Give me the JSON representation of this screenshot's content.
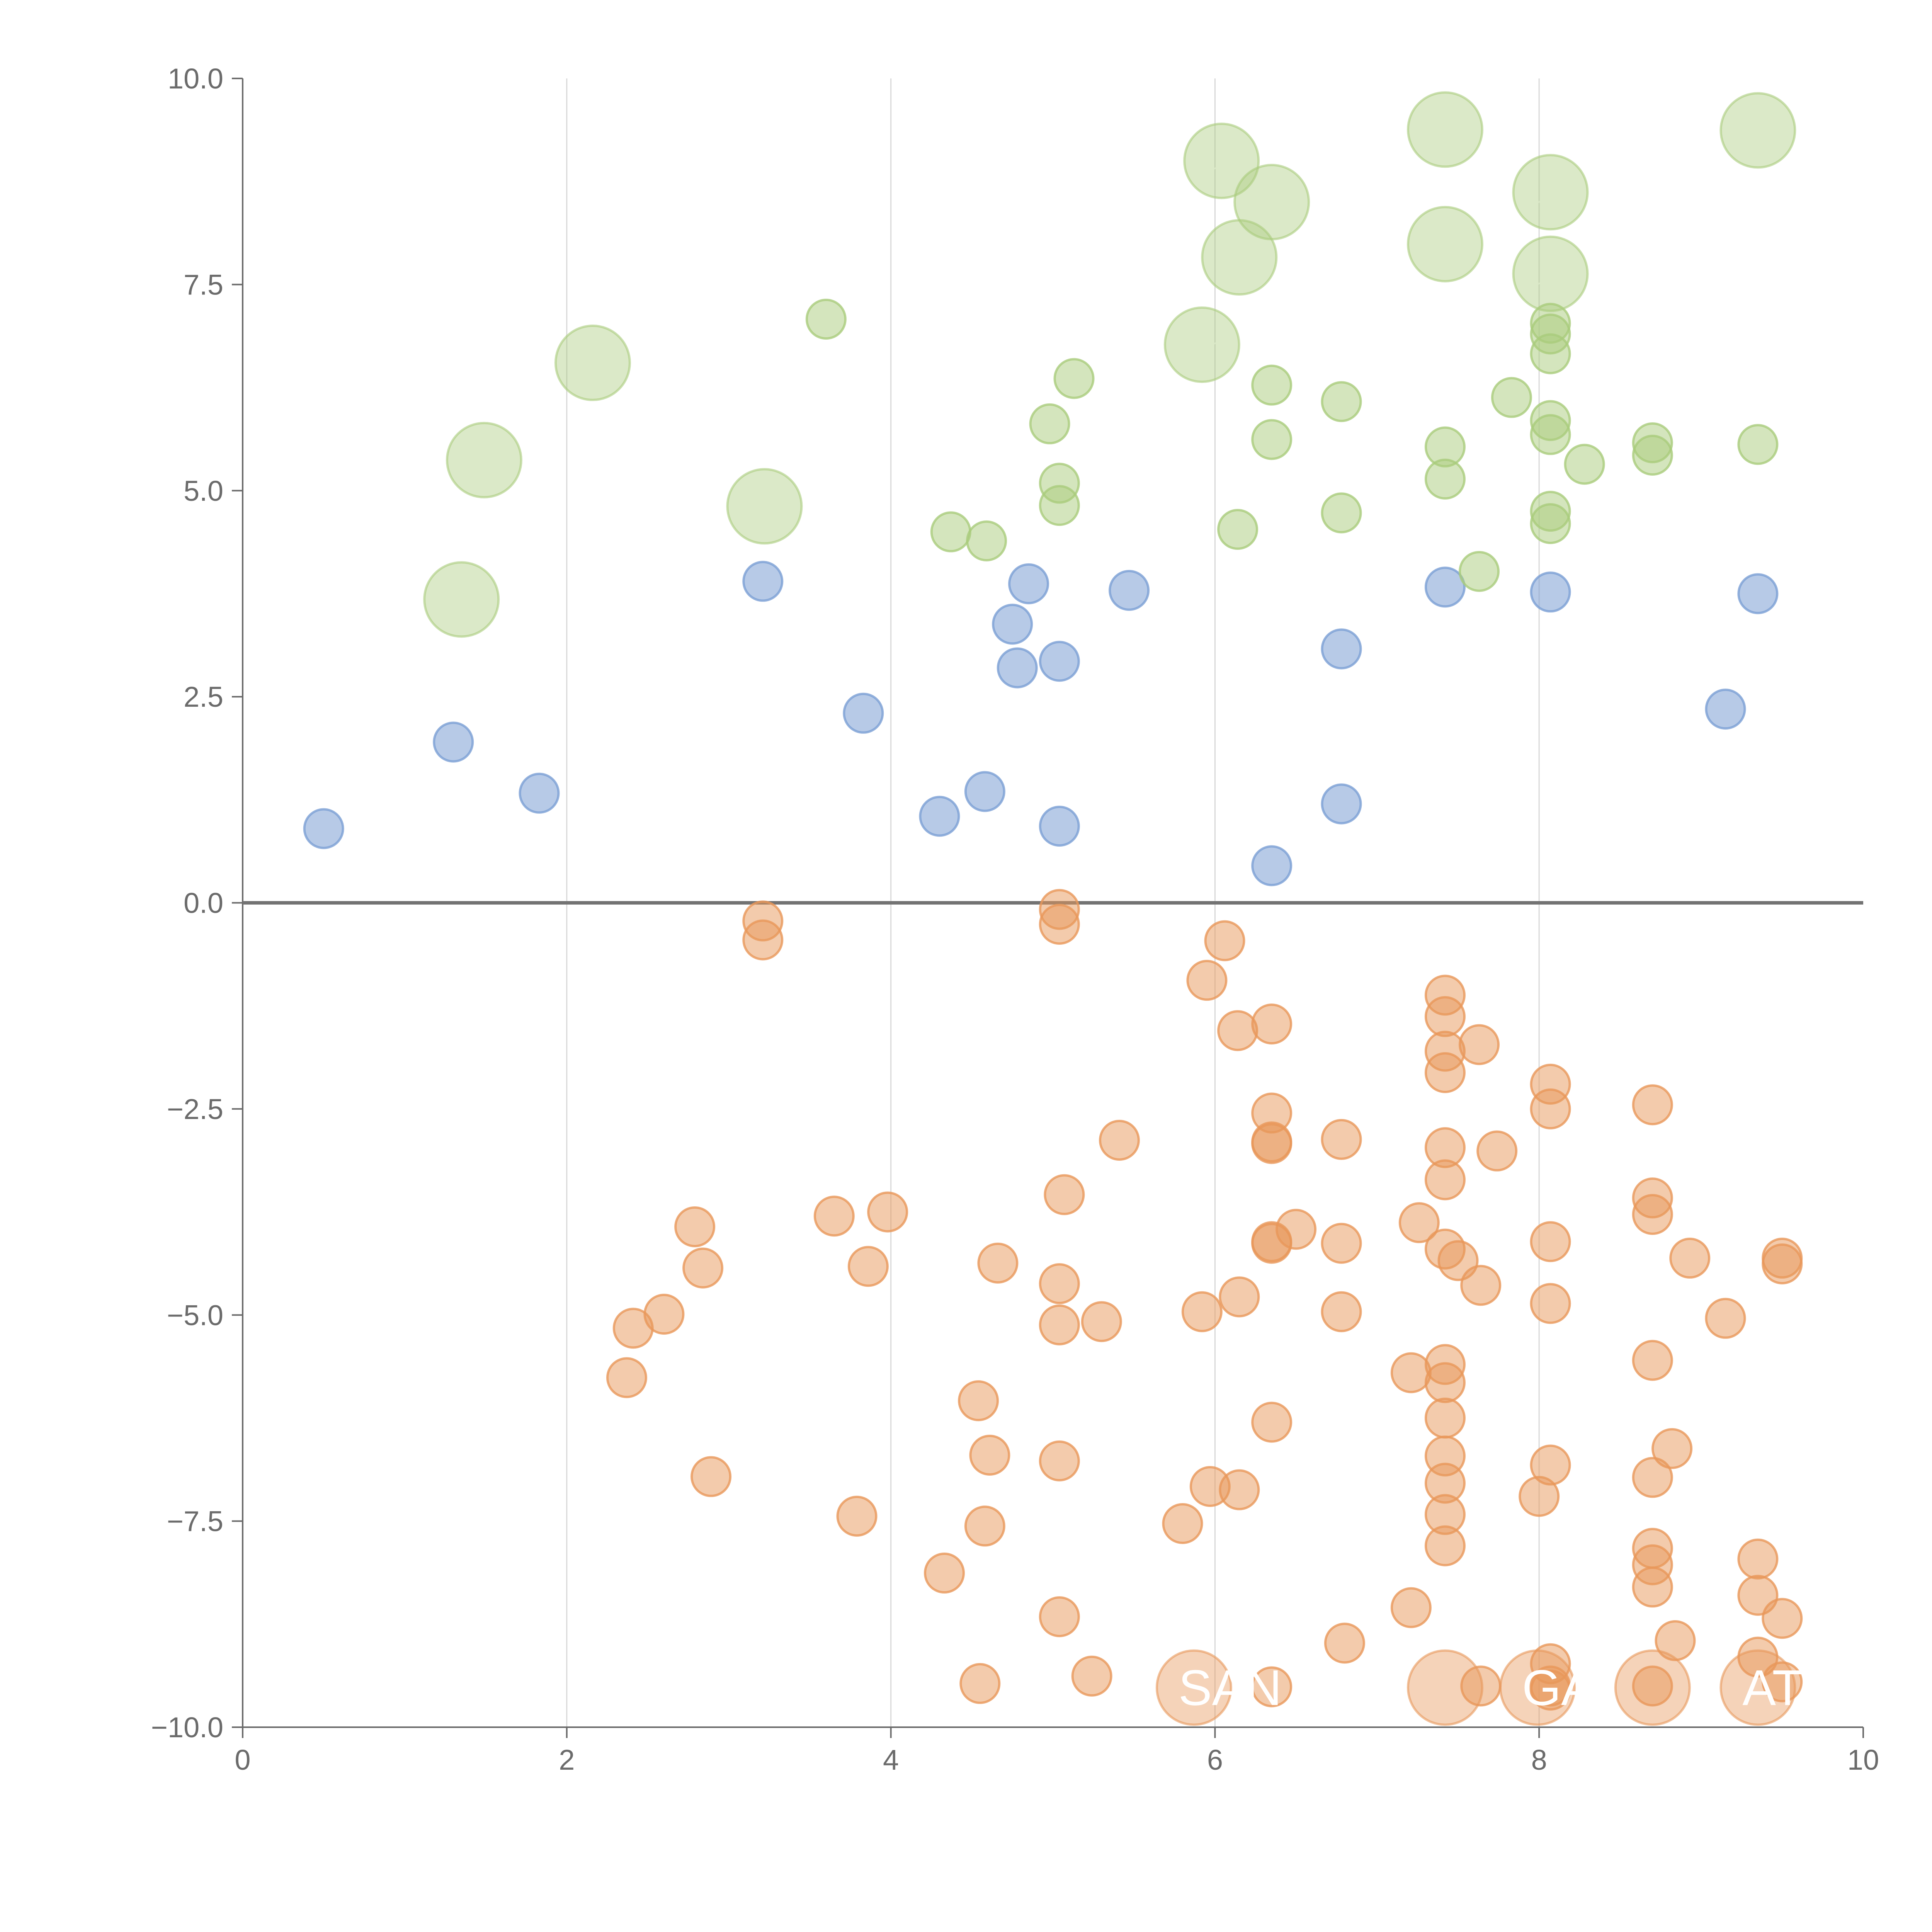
{
  "chart_data": {
    "type": "scatter",
    "title": "",
    "xlabel": "",
    "ylabel": "",
    "xlim": [
      0,
      10
    ],
    "ylim": [
      -10,
      10
    ],
    "x_ticks": [
      0,
      2,
      4,
      6,
      8,
      10
    ],
    "x_tick_labels": [
      "0",
      "2",
      "4",
      "6",
      "8",
      "10"
    ],
    "y_ticks": [
      10,
      7.5,
      5,
      2.5,
      0,
      -2.5,
      -5,
      -7.5,
      -10
    ],
    "y_tick_labels": [
      "10.0",
      "7.5",
      "5.0",
      "2.5",
      "0.0",
      "−2.5",
      "−5.0",
      "−7.5",
      "−10.0"
    ],
    "grid": "vertical",
    "reference_line": 0,
    "colors": {
      "blue": "#7b9fd4",
      "green": "#a9cc7c",
      "orange": "#e8975a"
    },
    "series": [
      {
        "name": "blue",
        "points": [
          [
            0.5,
            0.9
          ],
          [
            1.3,
            1.95
          ],
          [
            1.83,
            1.33
          ],
          [
            3.21,
            3.9
          ],
          [
            3.83,
            2.3
          ],
          [
            4.3,
            1.05
          ],
          [
            4.58,
            1.35
          ],
          [
            4.75,
            3.38
          ],
          [
            4.78,
            2.85
          ],
          [
            4.85,
            3.87
          ],
          [
            5.04,
            2.93
          ],
          [
            5.04,
            0.93
          ],
          [
            5.47,
            3.79
          ],
          [
            6.35,
            0.45
          ],
          [
            6.78,
            3.08
          ],
          [
            6.78,
            1.2
          ],
          [
            7.42,
            3.83
          ],
          [
            8.07,
            3.77
          ],
          [
            9.15,
            2.35
          ],
          [
            9.35,
            3.75
          ]
        ]
      },
      {
        "name": "green",
        "points": [
          [
            3.6,
            7.08
          ],
          [
            4.37,
            4.5
          ],
          [
            4.59,
            4.39
          ],
          [
            4.98,
            5.81
          ],
          [
            5.04,
            5.09
          ],
          [
            5.04,
            4.82
          ],
          [
            5.13,
            6.36
          ],
          [
            6.14,
            4.53
          ],
          [
            6.35,
            6.28
          ],
          [
            6.35,
            5.62
          ],
          [
            6.78,
            6.08
          ],
          [
            6.78,
            4.73
          ],
          [
            7.42,
            5.53
          ],
          [
            7.42,
            5.14
          ],
          [
            7.63,
            4.02
          ],
          [
            7.83,
            6.13
          ],
          [
            8.07,
            7.03
          ],
          [
            8.07,
            6.9
          ],
          [
            8.07,
            6.66
          ],
          [
            8.07,
            5.85
          ],
          [
            8.07,
            5.68
          ],
          [
            8.07,
            4.75
          ],
          [
            8.07,
            4.6
          ],
          [
            8.28,
            5.32
          ],
          [
            8.7,
            5.58
          ],
          [
            8.7,
            5.43
          ],
          [
            9.35,
            5.56
          ]
        ],
        "large_points": [
          [
            1.35,
            3.68
          ],
          [
            1.49,
            5.37
          ],
          [
            2.16,
            6.55
          ],
          [
            3.22,
            4.81
          ],
          [
            5.92,
            6.77
          ],
          [
            6.04,
            9.0
          ],
          [
            6.15,
            7.83
          ],
          [
            6.35,
            8.5
          ],
          [
            7.42,
            9.38
          ],
          [
            7.42,
            7.99
          ],
          [
            8.07,
            8.62
          ],
          [
            8.07,
            7.63
          ],
          [
            9.35,
            9.37
          ]
        ]
      },
      {
        "name": "orange",
        "points": [
          [
            2.37,
            -5.76
          ],
          [
            2.41,
            -5.16
          ],
          [
            2.6,
            -4.99
          ],
          [
            2.79,
            -3.93
          ],
          [
            2.84,
            -4.43
          ],
          [
            2.89,
            -6.96
          ],
          [
            3.21,
            -0.22
          ],
          [
            3.21,
            -0.45
          ],
          [
            3.65,
            -3.8
          ],
          [
            3.79,
            -7.44
          ],
          [
            3.86,
            -4.41
          ],
          [
            3.98,
            -3.75
          ],
          [
            4.33,
            -8.13
          ],
          [
            4.54,
            -6.04
          ],
          [
            4.55,
            -9.47
          ],
          [
            4.58,
            -7.56
          ],
          [
            4.61,
            -6.7
          ],
          [
            4.66,
            -4.37
          ],
          [
            5.04,
            -0.08
          ],
          [
            5.04,
            -0.26
          ],
          [
            5.04,
            -4.62
          ],
          [
            5.04,
            -5.12
          ],
          [
            5.04,
            -6.77
          ],
          [
            5.04,
            -8.66
          ],
          [
            5.07,
            -3.54
          ],
          [
            5.24,
            -9.38
          ],
          [
            5.3,
            -5.08
          ],
          [
            5.41,
            -2.88
          ],
          [
            5.8,
            -7.53
          ],
          [
            5.92,
            -4.96
          ],
          [
            5.95,
            -0.94
          ],
          [
            5.97,
            -7.08
          ],
          [
            6.06,
            -0.46
          ],
          [
            6.14,
            -1.55
          ],
          [
            6.15,
            -4.78
          ],
          [
            6.15,
            -7.12
          ],
          [
            6.35,
            -1.47
          ],
          [
            6.35,
            -2.55
          ],
          [
            6.35,
            -2.9
          ],
          [
            6.35,
            -2.92
          ],
          [
            6.35,
            -4.11
          ],
          [
            6.35,
            -4.13
          ],
          [
            6.35,
            -6.3
          ],
          [
            6.35,
            -9.51
          ],
          [
            6.5,
            -3.96
          ],
          [
            6.78,
            -2.87
          ],
          [
            6.78,
            -4.13
          ],
          [
            6.78,
            -4.96
          ],
          [
            6.8,
            -8.98
          ],
          [
            7.21,
            -5.7
          ],
          [
            7.21,
            -8.55
          ],
          [
            7.26,
            -3.88
          ],
          [
            7.42,
            -1.12
          ],
          [
            7.42,
            -1.38
          ],
          [
            7.42,
            -1.8
          ],
          [
            7.42,
            -2.06
          ],
          [
            7.42,
            -2.97
          ],
          [
            7.42,
            -3.36
          ],
          [
            7.42,
            -4.2
          ],
          [
            7.42,
            -5.6
          ],
          [
            7.42,
            -5.82
          ],
          [
            7.42,
            -6.25
          ],
          [
            7.42,
            -6.71
          ],
          [
            7.42,
            -7.04
          ],
          [
            7.42,
            -7.42
          ],
          [
            7.42,
            -7.8
          ],
          [
            7.5,
            -4.34
          ],
          [
            7.63,
            -1.72
          ],
          [
            7.64,
            -4.64
          ],
          [
            7.64,
            -9.5
          ],
          [
            7.74,
            -3.01
          ],
          [
            8.0,
            -7.2
          ],
          [
            8.07,
            -2.2
          ],
          [
            8.07,
            -2.5
          ],
          [
            8.07,
            -4.11
          ],
          [
            8.07,
            -4.86
          ],
          [
            8.07,
            -6.82
          ],
          [
            8.07,
            -9.23
          ],
          [
            8.07,
            -9.5
          ],
          [
            8.07,
            -9.55
          ],
          [
            8.7,
            -2.45
          ],
          [
            8.7,
            -3.58
          ],
          [
            8.7,
            -3.78
          ],
          [
            8.7,
            -5.55
          ],
          [
            8.7,
            -6.97
          ],
          [
            8.7,
            -7.83
          ],
          [
            8.7,
            -8.03
          ],
          [
            8.7,
            -8.3
          ],
          [
            8.7,
            -9.5
          ],
          [
            8.82,
            -6.62
          ],
          [
            8.84,
            -8.95
          ],
          [
            8.93,
            -4.31
          ],
          [
            9.15,
            -5.04
          ],
          [
            9.35,
            -7.96
          ],
          [
            9.35,
            -8.4
          ],
          [
            9.35,
            -9.15
          ],
          [
            9.5,
            -4.31
          ],
          [
            9.5,
            -4.38
          ],
          [
            9.5,
            -8.68
          ],
          [
            9.5,
            -9.45
          ]
        ],
        "large_points": [
          [
            5.87,
            -9.52
          ],
          [
            7.42,
            -9.52
          ],
          [
            7.99,
            -9.52
          ],
          [
            8.7,
            -9.52
          ],
          [
            9.35,
            -9.52
          ]
        ]
      }
    ],
    "annotations": [
      "SAN",
      "GA",
      "AT"
    ]
  }
}
